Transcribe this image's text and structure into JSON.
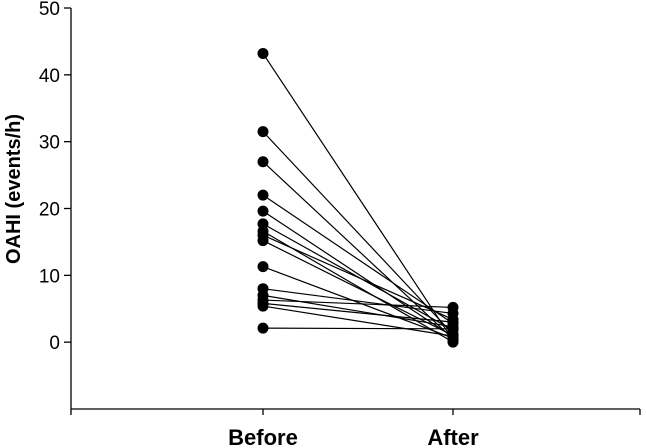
{
  "chart_data": {
    "type": "line",
    "title": "",
    "xlabel": "",
    "ylabel": "OAHI (events/h)",
    "categories": [
      "Before",
      "After"
    ],
    "ylim": [
      -10,
      50
    ],
    "yticks": [
      0,
      10,
      20,
      30,
      40,
      50
    ],
    "grid": false,
    "legend": "none",
    "line_color": "#000000",
    "marker_color": "#000000",
    "pairs": [
      {
        "before": 43.2,
        "after": 0.3
      },
      {
        "before": 31.5,
        "after": 1.2
      },
      {
        "before": 27.0,
        "after": 0.5
      },
      {
        "before": 22.0,
        "after": 2.8
      },
      {
        "before": 19.6,
        "after": 0.8
      },
      {
        "before": 17.7,
        "after": 1.8
      },
      {
        "before": 16.6,
        "after": 0.0
      },
      {
        "before": 16.0,
        "after": 3.4
      },
      {
        "before": 15.2,
        "after": 1.0
      },
      {
        "before": 11.3,
        "after": 0.6
      },
      {
        "before": 8.0,
        "after": 4.3
      },
      {
        "before": 7.0,
        "after": 2.3
      },
      {
        "before": 6.3,
        "after": 5.2
      },
      {
        "before": 5.8,
        "after": 3.0
      },
      {
        "before": 5.4,
        "after": 0.9
      },
      {
        "before": 2.1,
        "after": 2.0
      }
    ]
  }
}
